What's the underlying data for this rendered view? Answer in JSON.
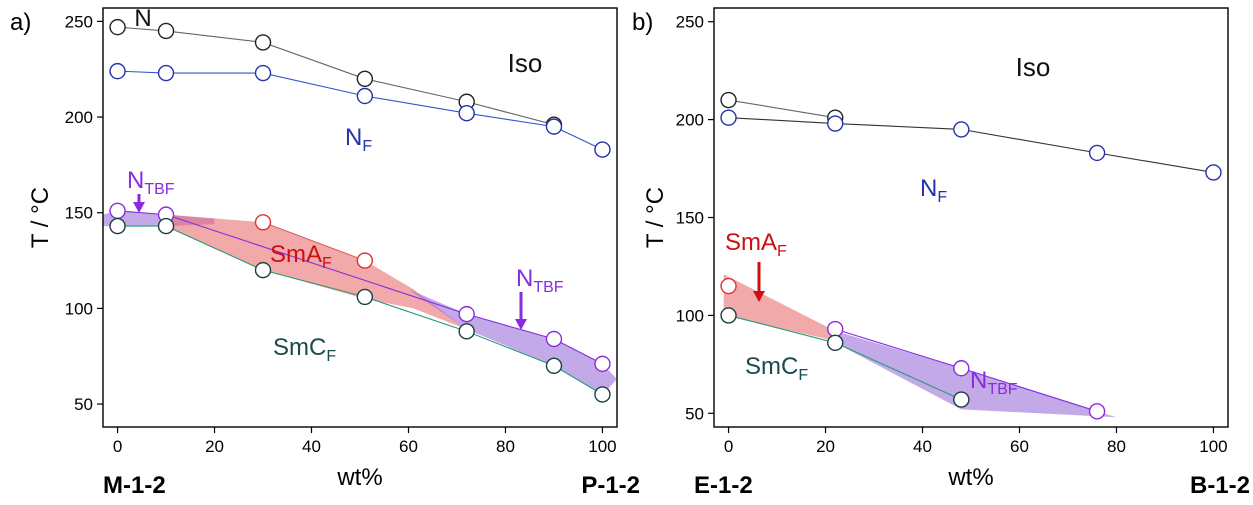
{
  "chart_data": [
    {
      "panel_label": "a)",
      "type": "scatter",
      "xlabel": "wt%",
      "ylabel": "T / °C",
      "xlim": [
        -3,
        103
      ],
      "ylim": [
        38,
        257
      ],
      "xticks": [
        "0",
        "20",
        "40",
        "60",
        "80",
        "100"
      ],
      "yticks": [
        "50",
        "100",
        "150",
        "200",
        "250"
      ],
      "end_left": "M-1-2",
      "end_right": "P-1-2",
      "grid": false,
      "series": [
        {
          "color": "#666666",
          "marker": "#222222",
          "points": [
            [
              0,
              247
            ],
            [
              10,
              245
            ],
            [
              30,
              239
            ],
            [
              51,
              220
            ],
            [
              72,
              208
            ],
            [
              90,
              196
            ]
          ]
        },
        {
          "color": "#3355cc",
          "marker": "#2233aa",
          "points": [
            [
              0,
              224
            ],
            [
              10,
              223
            ],
            [
              30,
              223
            ],
            [
              51,
              211
            ],
            [
              72,
              202
            ],
            [
              90,
              195
            ],
            [
              100,
              183
            ]
          ]
        },
        {
          "color": "#8a2be2",
          "marker": "#8a2be2",
          "points": [
            [
              0,
              151
            ],
            [
              10,
              149
            ],
            [
              72,
              97
            ],
            [
              90,
              84
            ],
            [
              100,
              71
            ]
          ]
        },
        {
          "color": "#e06060",
          "marker": "#e03030",
          "points": [
            [
              30,
              145
            ],
            [
              51,
              125
            ]
          ]
        },
        {
          "color": "#2a9a7a",
          "marker": "#1a4040",
          "points": [
            [
              0,
              143
            ],
            [
              10,
              143
            ],
            [
              30,
              120
            ],
            [
              51,
              106
            ],
            [
              72,
              88
            ],
            [
              90,
              70
            ],
            [
              100,
              55
            ]
          ]
        }
      ],
      "regions": [
        {
          "color": "#9b6fd8",
          "polygon": [
            [
              -3,
              149
            ],
            [
              0,
              151
            ],
            [
              10,
              149
            ],
            [
              20,
              147
            ],
            [
              20,
              144
            ],
            [
              10,
              143
            ],
            [
              0,
              143
            ],
            [
              -3,
              143
            ]
          ]
        },
        {
          "color": "#ea6f6f",
          "polygon": [
            [
              10,
              149
            ],
            [
              30,
              145
            ],
            [
              51,
              125
            ],
            [
              61,
              110
            ],
            [
              72,
              89
            ],
            [
              61,
              100
            ],
            [
              51,
              105
            ],
            [
              30,
              120
            ],
            [
              10,
              143
            ]
          ]
        },
        {
          "color": "#9b6fd8",
          "polygon": [
            [
              60,
              110
            ],
            [
              72,
              97
            ],
            [
              90,
              84
            ],
            [
              100,
              71
            ],
            [
              103,
              63
            ],
            [
              100,
              55
            ],
            [
              90,
              70
            ],
            [
              72,
              89
            ]
          ]
        }
      ],
      "annotations": [
        {
          "text": "N",
          "color": "#111111"
        },
        {
          "text": "Iso",
          "color": "#111111"
        },
        {
          "text": "N",
          "sub": "F",
          "color": "#2233aa"
        },
        {
          "text": "N",
          "sub": "TBF",
          "color": "#8a2be2"
        },
        {
          "text": "SmA",
          "sub": "F",
          "color": "#cc1010"
        },
        {
          "text": "N",
          "sub": "TBF",
          "color": "#8a2be2"
        },
        {
          "text": "SmC",
          "sub": "F",
          "color": "#1a4a4a"
        }
      ]
    },
    {
      "panel_label": "b)",
      "type": "scatter",
      "xlabel": "wt%",
      "ylabel": "T / °C",
      "xlim": [
        -3,
        103
      ],
      "ylim": [
        43,
        257
      ],
      "xticks": [
        "0",
        "20",
        "40",
        "60",
        "80",
        "100"
      ],
      "yticks": [
        "50",
        "100",
        "150",
        "200",
        "250"
      ],
      "end_left": "E-1-2",
      "end_right": "B-1-2",
      "grid": false,
      "series": [
        {
          "color": "#666666",
          "marker": "#222222",
          "points": [
            [
              0,
              210
            ],
            [
              22,
              201
            ]
          ]
        },
        {
          "color": "#333333",
          "marker": "#2233aa",
          "points": [
            [
              0,
              201
            ],
            [
              22,
              198
            ],
            [
              48,
              195
            ],
            [
              76,
              183
            ],
            [
              100,
              173
            ]
          ]
        },
        {
          "color": "#e06060",
          "marker": "#e03030",
          "points": [
            [
              0,
              115
            ]
          ]
        },
        {
          "color": "#8a2be2",
          "marker": "#8a2be2",
          "points": [
            [
              22,
              93
            ],
            [
              48,
              73
            ],
            [
              76,
              51
            ]
          ]
        },
        {
          "color": "#2a9a7a",
          "marker": "#1a4040",
          "points": [
            [
              0,
              100
            ],
            [
              22,
              86
            ],
            [
              48,
              57
            ]
          ]
        }
      ],
      "regions": [
        {
          "color": "#ea6f6f",
          "polygon": [
            [
              -1,
              121
            ],
            [
              22,
              92
            ],
            [
              22,
              87
            ],
            [
              -1,
              100
            ]
          ]
        },
        {
          "color": "#9b6fd8",
          "polygon": [
            [
              22,
              92
            ],
            [
              48,
              73
            ],
            [
              76,
              51
            ],
            [
              80,
              48
            ],
            [
              48,
              52
            ],
            [
              22,
              86
            ]
          ]
        }
      ],
      "annotations": [
        {
          "text": "Iso",
          "color": "#111111"
        },
        {
          "text": "N",
          "sub": "F",
          "color": "#2233aa"
        },
        {
          "text": "SmA",
          "sub": "F",
          "color": "#cc1010"
        },
        {
          "text": "SmC",
          "sub": "F",
          "color": "#1a4a4a"
        },
        {
          "text": "N",
          "sub": "TBF",
          "color": "#8a2be2"
        }
      ]
    }
  ]
}
